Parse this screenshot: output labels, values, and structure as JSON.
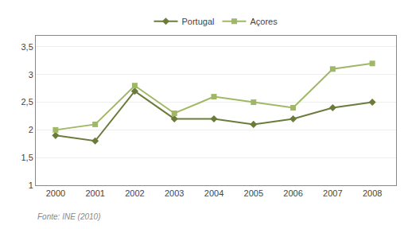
{
  "chart_data": {
    "type": "line",
    "x": [
      2000,
      2001,
      2002,
      2003,
      2004,
      2005,
      2006,
      2007,
      2008
    ],
    "series": [
      {
        "name": "Portugal",
        "color": "#6b7c3a",
        "marker": "diamond",
        "line_style": "solid",
        "values": [
          1.9,
          1.8,
          2.7,
          2.2,
          2.2,
          2.1,
          2.2,
          2.4,
          2.5
        ]
      },
      {
        "name": "Açores",
        "color": "#a0b865",
        "marker": "square",
        "line_style": "solid",
        "values": [
          2.0,
          2.1,
          2.8,
          2.3,
          2.6,
          2.5,
          2.4,
          3.1,
          3.2
        ]
      }
    ],
    "xlim": [
      1999.5,
      2008.6
    ],
    "xticks": [
      2000,
      2001,
      2002,
      2003,
      2004,
      2005,
      2006,
      2007,
      2008
    ],
    "ylim": [
      1.0,
      3.7
    ],
    "yticks": [
      1,
      {
        "value": 1.5,
        "label": "1,5"
      },
      2,
      {
        "value": 2.5,
        "label": "2,5"
      },
      3,
      {
        "value": 3.5,
        "label": "3,5"
      }
    ],
    "grid": "y",
    "legend": "top",
    "annotations": [
      "Fonte: INE (2010)"
    ]
  }
}
